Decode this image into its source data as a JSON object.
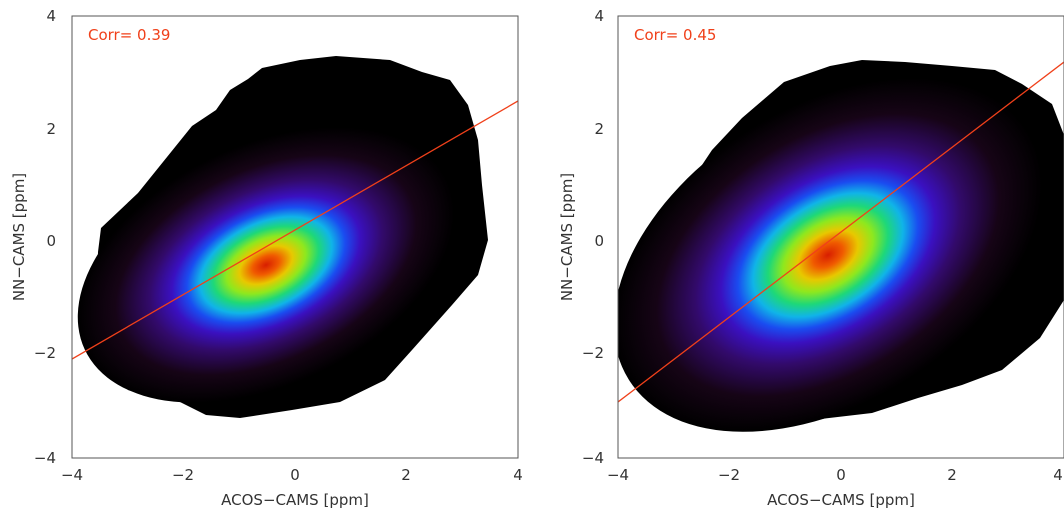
{
  "chart_data": [
    {
      "type": "heatmap",
      "xlabel": "ACOS−CAMS [ppm]",
      "ylabel": "NN−CAMS [ppm]",
      "xlim": [
        -4,
        4
      ],
      "ylim": [
        -4,
        4
      ],
      "xticks": [
        -4,
        -2,
        0,
        2,
        4
      ],
      "yticks": [
        -4,
        -2,
        0,
        2,
        4
      ],
      "xtick_labels": [
        "−4",
        "−2",
        "0",
        "2",
        "4"
      ],
      "ytick_labels": [
        "−4",
        "−2",
        "0",
        "2",
        "4"
      ],
      "annotation": "Corr= 0.39",
      "density_peak": [
        -0.5,
        0.05
      ],
      "fit_line": {
        "x": [
          -4,
          4
        ],
        "y": [
          -2.15,
          2.5
        ]
      }
    },
    {
      "type": "heatmap",
      "xlabel": "ACOS−CAMS [ppm]",
      "ylabel": "NN−CAMS [ppm]",
      "xlim": [
        -4,
        4
      ],
      "ylim": [
        -4,
        4
      ],
      "xticks": [
        -4,
        -2,
        0,
        2,
        4
      ],
      "yticks": [
        -4,
        -2,
        0,
        2,
        4
      ],
      "xtick_labels": [
        "−4",
        "−2",
        "0",
        "2",
        "4"
      ],
      "ytick_labels": [
        "−4",
        "−2",
        "0",
        "2",
        "4"
      ],
      "annotation": "Corr= 0.45",
      "density_peak": [
        -0.25,
        0.05
      ],
      "fit_line": {
        "x": [
          -4,
          4
        ],
        "y": [
          -2.95,
          3.3
        ]
      }
    }
  ],
  "colors": {
    "annotation": "#f0401a",
    "fit_line": "#f0401a",
    "axes": "#555555"
  }
}
